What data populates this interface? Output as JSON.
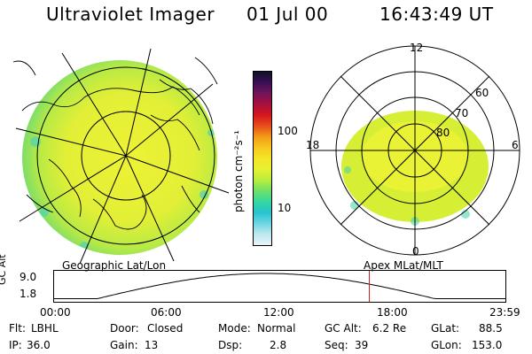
{
  "header": {
    "title": "Ultraviolet Imager",
    "date": "01 Jul 00",
    "time": "16:43:49 UT"
  },
  "left_panel": {
    "label": "Geographic Lat/Lon"
  },
  "right_panel": {
    "label": "Apex  MLat/MLT",
    "mlt_labels": {
      "top": "12",
      "left": "18",
      "right": "6",
      "bottom": "0"
    },
    "lat_labels": [
      "60",
      "70",
      "80"
    ]
  },
  "colorbar": {
    "unit_label": "photon cm⁻²s⁻¹",
    "tick_labels": [
      "100",
      "10"
    ],
    "colors": [
      "#e8f4f8",
      "#bfe8ee",
      "#6fd6e3",
      "#26c3d1",
      "#35d7a0",
      "#6fe06a",
      "#b8ee3c",
      "#e7f132",
      "#f4e626",
      "#f8c81f",
      "#f39a18",
      "#e84d1d",
      "#d5161e",
      "#a8103c",
      "#70145c",
      "#3a0f55",
      "#101028"
    ],
    "scale": "log"
  },
  "timeline": {
    "y_axis_label": "GC Alt",
    "y_ticks": [
      "9.0",
      "1.8"
    ],
    "x_ticks": [
      "00:00",
      "06:00",
      "12:00",
      "18:00",
      "23:59"
    ],
    "current_marker_hour": 16.73,
    "marker_color": "#d02020"
  },
  "info": {
    "flt_label": "Flt:",
    "flt_value": "LBHL",
    "ip_label": "IP:",
    "ip_value": "36.0",
    "door_label": "Door:",
    "door_value": "Closed",
    "gain_label": "Gain:",
    "gain_value": "13",
    "mode_label": "Mode:",
    "mode_value": "Normal",
    "dsp_label": "Dsp:",
    "dsp_value": "2.8",
    "gcalt_label": "GC Alt:",
    "gcalt_value": "6.2 Re",
    "seq_label": "Seq:",
    "seq_value": "39",
    "glat_label": "GLat:",
    "glat_value": "88.5",
    "glon_label": "GLon:",
    "glon_value": "153.0"
  }
}
